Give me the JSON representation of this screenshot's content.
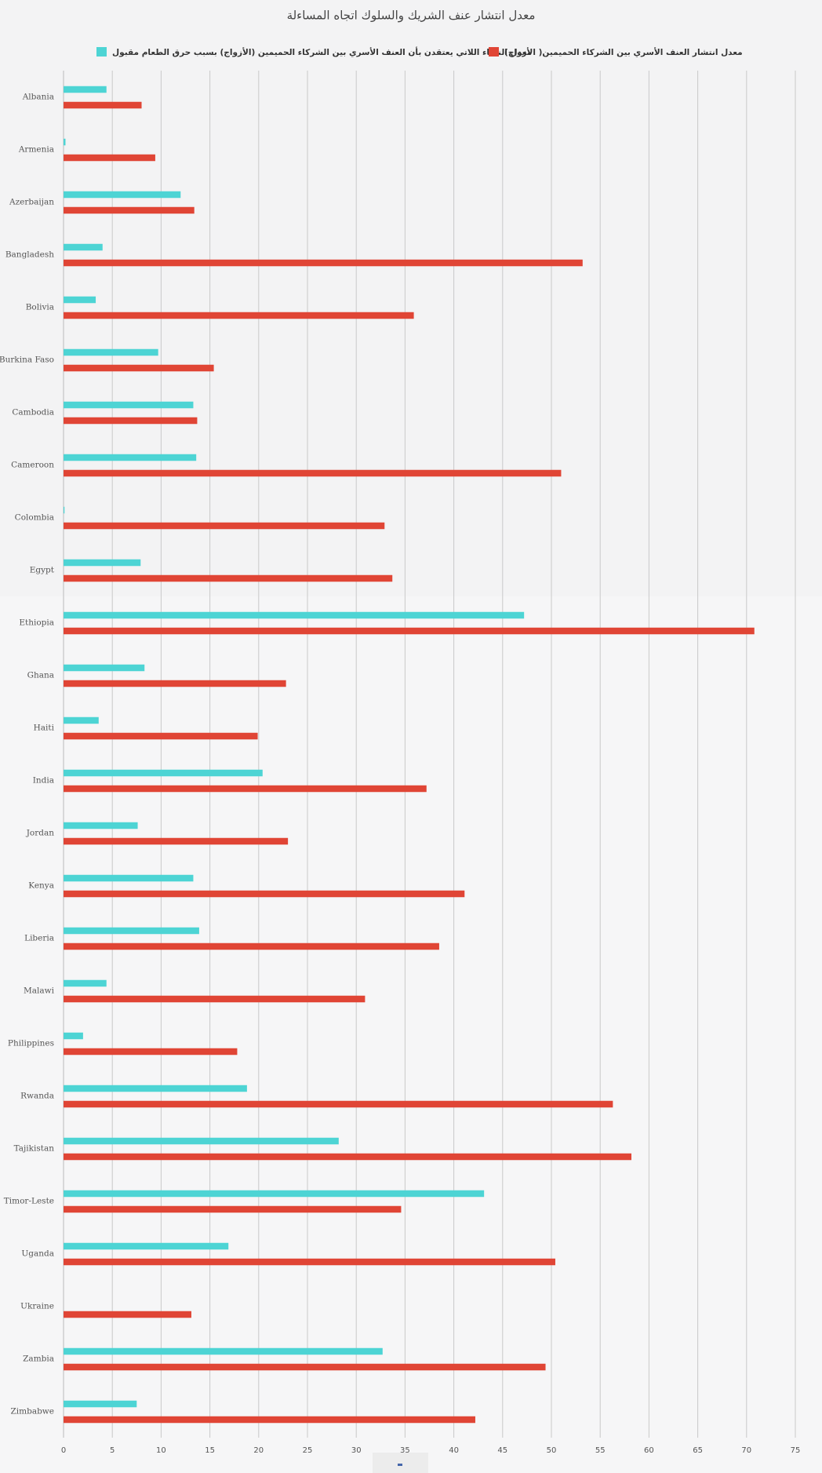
{
  "chart_data": {
    "type": "bar",
    "orientation": "horizontal",
    "title": "معدل انتشار عنف الشريك والسلوك اتجاه المساءلة",
    "categories": [
      "Albania",
      "Armenia",
      "Azerbaijan",
      "Bangladesh",
      "Bolivia",
      "Burkina Faso",
      "Cambodia",
      "Cameroon",
      "Colombia",
      "Egypt",
      "Ethiopia",
      "Ghana",
      "Haiti",
      "India",
      "Jordan",
      "Kenya",
      "Liberia",
      "Malawi",
      "Philippines",
      "Rwanda",
      "Tajikistan",
      "Timor-Leste",
      "Uganda",
      "Ukraine",
      "Zambia",
      "Zimbabwe"
    ],
    "series": [
      {
        "name": "معدل النساء اللاتي يعتقدن بأن العنف الأسري بين الشركاء الحميمين (الأزواج) بسبب حرق الطعام مقبول",
        "color": "#4dd4d4",
        "values": [
          4.4,
          0.2,
          12.0,
          4.0,
          3.3,
          9.7,
          13.3,
          13.6,
          0.1,
          7.9,
          47.2,
          8.3,
          3.6,
          20.4,
          7.6,
          13.3,
          13.9,
          4.4,
          2.0,
          18.8,
          28.2,
          43.1,
          16.9,
          null,
          32.7,
          7.5
        ]
      },
      {
        "name": "(معدل انتشار العنف الأسري بين الشركاء الحميمين( الأزواج",
        "color": "#e04535",
        "values": [
          8.0,
          9.4,
          13.4,
          53.2,
          35.9,
          15.4,
          13.7,
          51.0,
          32.9,
          33.7,
          70.8,
          22.8,
          19.9,
          37.2,
          23.0,
          41.1,
          38.5,
          30.9,
          17.8,
          56.3,
          58.2,
          34.6,
          50.4,
          13.1,
          49.4,
          42.2
        ]
      }
    ],
    "xlim": [
      0,
      75
    ],
    "xticks": [
      0,
      5,
      10,
      15,
      20,
      25,
      30,
      35,
      40,
      45,
      50,
      55,
      60,
      65,
      70,
      75
    ],
    "grid": true
  }
}
